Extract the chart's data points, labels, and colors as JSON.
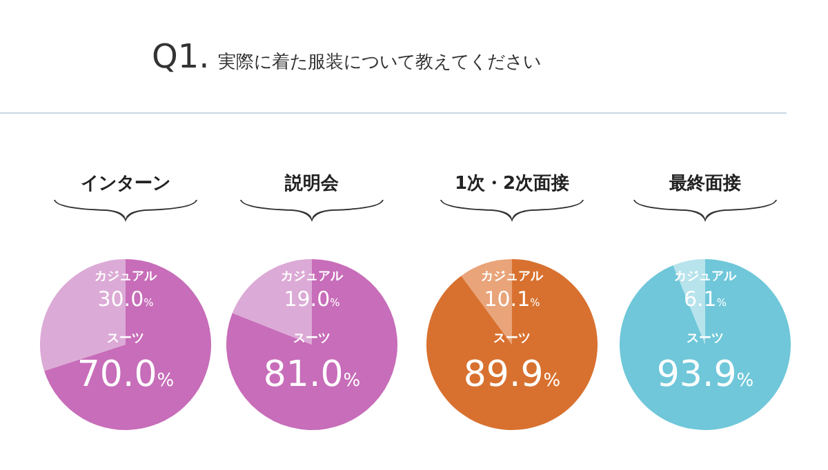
{
  "chart_data": [
    {
      "type": "pie",
      "title": "インターン",
      "annotations": [
        "Q1.",
        "実際に着た服装について教えてください"
      ],
      "categories": [
        "カジュアル",
        "スーツ"
      ],
      "values": [
        30.0,
        70.0
      ],
      "colors": [
        "#dcaad6",
        "#c76db9"
      ],
      "value_labels": [
        "30.0%",
        "70.0%"
      ]
    },
    {
      "type": "pie",
      "title": "説明会",
      "categories": [
        "カジュアル",
        "スーツ"
      ],
      "values": [
        19.0,
        81.0
      ],
      "colors": [
        "#dcaad6",
        "#c76db9"
      ],
      "value_labels": [
        "19.0%",
        "81.0%"
      ]
    },
    {
      "type": "pie",
      "title": "1次・2次面接",
      "categories": [
        "カジュアル",
        "スーツ"
      ],
      "values": [
        10.1,
        89.9
      ],
      "colors": [
        "#e9a479",
        "#d8712f"
      ],
      "value_labels": [
        "10.1%",
        "89.9%"
      ]
    },
    {
      "type": "pie",
      "title": "最終面接",
      "categories": [
        "カジュアル",
        "スーツ"
      ],
      "values": [
        6.1,
        93.9
      ],
      "colors": [
        "#b7e3ec",
        "#6fc7d9"
      ],
      "value_labels": [
        "6.1%",
        "93.9%"
      ]
    }
  ]
}
